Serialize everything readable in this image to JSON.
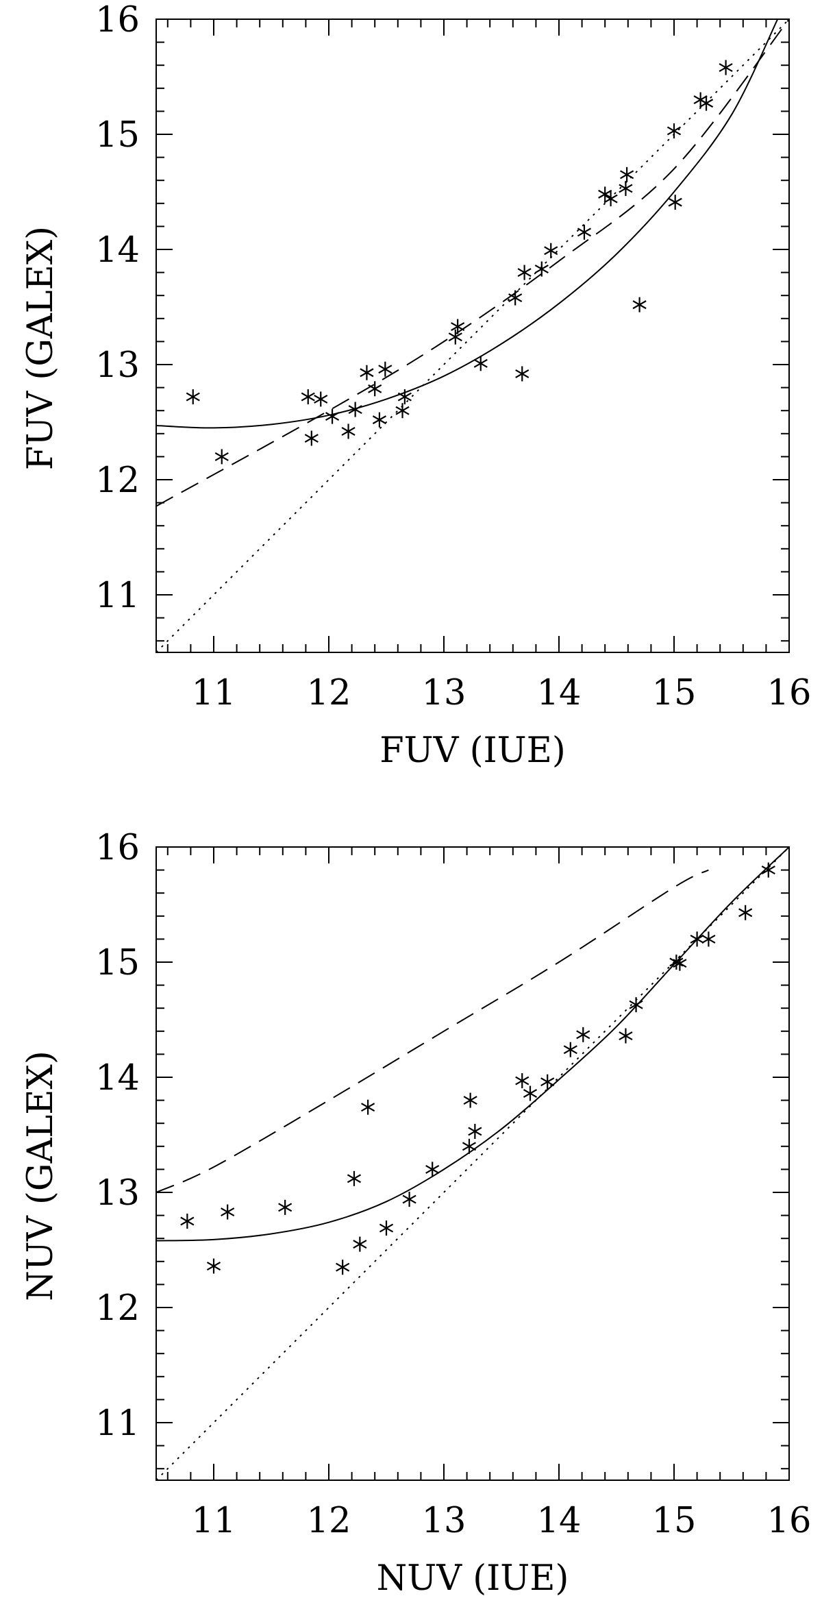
{
  "chart_data": [
    {
      "type": "scatter",
      "xlabel": "FUV (IUE)",
      "ylabel": "FUV (GALEX)",
      "xlim": [
        10.5,
        16
      ],
      "ylim": [
        10.5,
        16
      ],
      "xticks": [
        "11",
        "12",
        "13",
        "14",
        "15",
        "16"
      ],
      "yticks": [
        "11",
        "12",
        "13",
        "14",
        "15",
        "16"
      ],
      "points": [
        [
          10.82,
          12.72
        ],
        [
          11.07,
          12.2
        ],
        [
          11.82,
          12.72
        ],
        [
          11.85,
          12.36
        ],
        [
          11.93,
          12.7
        ],
        [
          12.03,
          12.55
        ],
        [
          12.17,
          12.42
        ],
        [
          12.23,
          12.61
        ],
        [
          12.33,
          12.93
        ],
        [
          12.4,
          12.79
        ],
        [
          12.44,
          12.52
        ],
        [
          12.49,
          12.96
        ],
        [
          12.64,
          12.6
        ],
        [
          12.66,
          12.72
        ],
        [
          13.1,
          13.24
        ],
        [
          13.12,
          13.33
        ],
        [
          13.32,
          13.01
        ],
        [
          13.62,
          13.58
        ],
        [
          13.68,
          12.92
        ],
        [
          13.7,
          13.8
        ],
        [
          13.85,
          13.83
        ],
        [
          13.93,
          13.99
        ],
        [
          14.22,
          14.15
        ],
        [
          14.4,
          14.48
        ],
        [
          14.45,
          14.44
        ],
        [
          14.58,
          14.53
        ],
        [
          14.59,
          14.65
        ],
        [
          14.7,
          13.52
        ],
        [
          15.0,
          15.03
        ],
        [
          15.01,
          14.41
        ],
        [
          15.23,
          15.3
        ],
        [
          15.28,
          15.27
        ],
        [
          15.45,
          15.58
        ]
      ],
      "lines": {
        "solid": [
          [
            10.5,
            12.47
          ],
          [
            11.0,
            12.45
          ],
          [
            11.5,
            12.48
          ],
          [
            12.0,
            12.56
          ],
          [
            12.5,
            12.7
          ],
          [
            13.0,
            12.9
          ],
          [
            13.5,
            13.18
          ],
          [
            14.0,
            13.53
          ],
          [
            14.5,
            13.96
          ],
          [
            15.0,
            14.5
          ],
          [
            15.5,
            15.17
          ],
          [
            15.9,
            16.0
          ]
        ],
        "dashed": [
          [
            10.5,
            11.77
          ],
          [
            12.0,
            12.6
          ],
          [
            13.0,
            13.2
          ],
          [
            14.0,
            13.9
          ],
          [
            15.0,
            14.7
          ],
          [
            16.0,
            16.0
          ]
        ],
        "dotted": [
          [
            10.5,
            10.5
          ],
          [
            16.0,
            16.0
          ]
        ]
      }
    },
    {
      "type": "scatter",
      "xlabel": "NUV (IUE)",
      "ylabel": "NUV (GALEX)",
      "xlim": [
        10.5,
        16
      ],
      "ylim": [
        10.5,
        16
      ],
      "xticks": [
        "11",
        "12",
        "13",
        "14",
        "15",
        "16"
      ],
      "yticks": [
        "11",
        "12",
        "13",
        "14",
        "15",
        "16"
      ],
      "points": [
        [
          10.77,
          12.75
        ],
        [
          11.0,
          12.36
        ],
        [
          11.12,
          12.83
        ],
        [
          11.62,
          12.87
        ],
        [
          12.12,
          12.35
        ],
        [
          12.22,
          13.12
        ],
        [
          12.27,
          12.55
        ],
        [
          12.34,
          13.74
        ],
        [
          12.5,
          12.69
        ],
        [
          12.7,
          12.94
        ],
        [
          12.9,
          13.2
        ],
        [
          13.22,
          13.4
        ],
        [
          13.23,
          13.8
        ],
        [
          13.27,
          13.53
        ],
        [
          13.68,
          13.97
        ],
        [
          13.75,
          13.86
        ],
        [
          13.9,
          13.96
        ],
        [
          14.1,
          14.24
        ],
        [
          14.21,
          14.37
        ],
        [
          14.58,
          14.36
        ],
        [
          14.67,
          14.63
        ],
        [
          15.02,
          15.0
        ],
        [
          15.05,
          14.99
        ],
        [
          15.2,
          15.2
        ],
        [
          15.3,
          15.2
        ],
        [
          15.62,
          15.43
        ],
        [
          15.82,
          15.8
        ]
      ],
      "lines": {
        "solid": [
          [
            10.5,
            12.58
          ],
          [
            11.0,
            12.59
          ],
          [
            11.5,
            12.64
          ],
          [
            12.0,
            12.74
          ],
          [
            12.5,
            12.92
          ],
          [
            13.0,
            13.2
          ],
          [
            13.5,
            13.55
          ],
          [
            14.0,
            13.98
          ],
          [
            14.5,
            14.44
          ],
          [
            15.0,
            14.98
          ],
          [
            15.5,
            15.52
          ],
          [
            16.0,
            16.0
          ]
        ],
        "dashed": [
          [
            10.5,
            13.0
          ],
          [
            11.0,
            13.22
          ],
          [
            12.0,
            13.8
          ],
          [
            13.0,
            14.4
          ],
          [
            14.0,
            15.0
          ],
          [
            15.0,
            15.65
          ],
          [
            15.3,
            15.8
          ]
        ],
        "dotted": [
          [
            10.5,
            10.5
          ],
          [
            16.0,
            16.0
          ]
        ]
      }
    }
  ]
}
